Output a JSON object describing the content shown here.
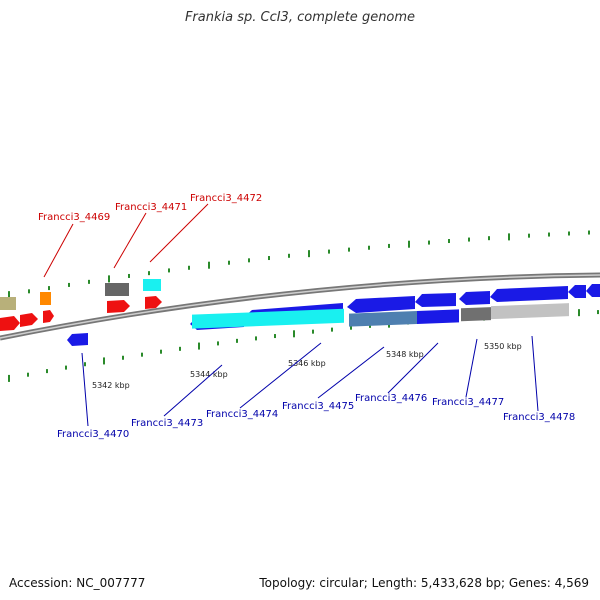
{
  "title": "Frankia sp. CcI3, complete genome",
  "footer": {
    "accession": "Accession: NC_007777",
    "topology": "Topology: circular; Length: 5,433,628 bp; Genes: 4,569"
  },
  "colors": {
    "backbone": "#8c8c8c",
    "forward_label": "#cc0000",
    "reverse_label": "#0000aa",
    "tick_mark": "#2a8a2a",
    "cds_forward": "#ee1111",
    "cds_reverse": "#1a1ae6",
    "cyan": "#19f0f0",
    "orange": "#ff8800",
    "olive": "#b8b07a",
    "grey": "#707070",
    "light_grey": "#c2c2c2",
    "steel": "#4e7fb0"
  },
  "scale_labels": [
    "5342 kbp",
    "5344 kbp",
    "5346 kbp",
    "5348 kbp",
    "5350 kbp"
  ],
  "gene_labels": {
    "forward": [
      "Francci3_4469",
      "Francci3_4471",
      "Francci3_4472"
    ],
    "reverse": [
      "Francci3_4470",
      "Francci3_4473",
      "Francci3_4474",
      "Francci3_4475",
      "Francci3_4476",
      "Francci3_4477",
      "Francci3_4478"
    ]
  }
}
